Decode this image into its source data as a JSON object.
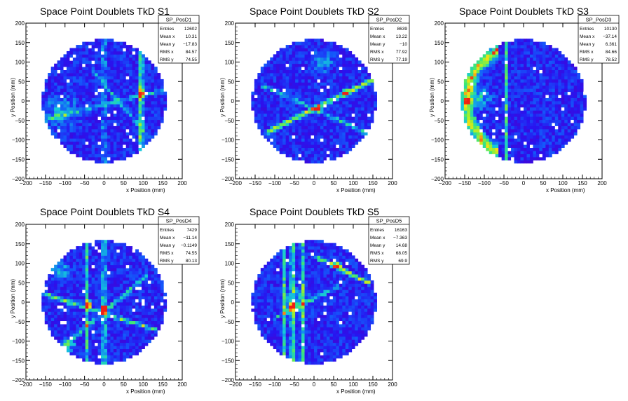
{
  "chart_data": [
    {
      "type": "heatmap",
      "title": "Space Point Doublets TkD S1",
      "xlabel": "x Position (mm)",
      "ylabel": "y Position (mm)",
      "xlim": [
        -200,
        200
      ],
      "ylim": [
        -200,
        200
      ],
      "ticks": [
        "−200",
        "−150",
        "−100",
        "−50",
        "0",
        "50",
        "100",
        "150",
        "200"
      ],
      "grid": false,
      "stats": {
        "name": "SP_PosD1",
        "rows": [
          [
            "Entries",
            "12602"
          ],
          [
            "Mean x",
            "10.31"
          ],
          [
            "Mean y",
            "−17.83"
          ],
          [
            "RMS x",
            "84.57"
          ],
          [
            "RMS y",
            "74.55"
          ]
        ]
      },
      "features": [
        {
          "kind": "vline",
          "x": 95,
          "intensity": 0.8
        },
        {
          "kind": "vline",
          "x": 0,
          "intensity": 0.3
        },
        {
          "kind": "line",
          "x1": -160,
          "y1": -50,
          "x2": 160,
          "y2": 30,
          "intensity": 0.3
        },
        {
          "kind": "line",
          "x1": -30,
          "y1": 80,
          "x2": 120,
          "y2": -100,
          "intensity": 0.25
        },
        {
          "kind": "blob",
          "x": -110,
          "y": -30,
          "r": 60,
          "intensity": 0.3
        },
        {
          "kind": "hotspot",
          "x": 95,
          "y": 20,
          "intensity": 1.0
        }
      ]
    },
    {
      "type": "heatmap",
      "title": "Space Point Doublets TkD S2",
      "xlabel": "x Position (mm)",
      "ylabel": "y Position (mm)",
      "xlim": [
        -200,
        200
      ],
      "ylim": [
        -200,
        200
      ],
      "ticks": [
        "−200",
        "−150",
        "−100",
        "−50",
        "0",
        "50",
        "100",
        "150",
        "200"
      ],
      "grid": false,
      "stats": {
        "name": "SP_PosD2",
        "rows": [
          [
            "Entries",
            "8639"
          ],
          [
            "Mean x",
            "13.22"
          ],
          [
            "Mean y",
            "−10"
          ],
          [
            "RMS x",
            "77.92"
          ],
          [
            "RMS y",
            "77.19"
          ]
        ]
      },
      "features": [
        {
          "kind": "line",
          "x1": -120,
          "y1": -80,
          "x2": 150,
          "y2": 55,
          "intensity": 0.7
        },
        {
          "kind": "line",
          "x1": -130,
          "y1": 40,
          "x2": 130,
          "y2": -80,
          "intensity": 0.35
        },
        {
          "kind": "blob",
          "x": 20,
          "y": 100,
          "r": 40,
          "intensity": 0.25
        },
        {
          "kind": "hotspot",
          "x": 10,
          "y": -20,
          "intensity": 0.95
        },
        {
          "kind": "hotspot",
          "x": 80,
          "y": 20,
          "intensity": 0.9
        }
      ]
    },
    {
      "type": "heatmap",
      "title": "Space Point Doublets TkD S3",
      "xlabel": "x Position (mm)",
      "ylabel": "y Position (mm)",
      "xlim": [
        -200,
        200
      ],
      "ylim": [
        -200,
        200
      ],
      "ticks": [
        "−200",
        "−150",
        "−100",
        "−50",
        "0",
        "50",
        "100",
        "150",
        "200"
      ],
      "grid": false,
      "stats": {
        "name": "SP_PosD3",
        "rows": [
          [
            "Entries",
            "10130"
          ],
          [
            "Mean x",
            "−37.14"
          ],
          [
            "Mean y",
            "6.361"
          ],
          [
            "RMS x",
            "84.66"
          ],
          [
            "RMS y",
            "78.52"
          ]
        ]
      },
      "features": [
        {
          "kind": "arc",
          "cx": 0,
          "cy": 0,
          "r": 145,
          "side": "left",
          "intensity": 0.75
        },
        {
          "kind": "vline",
          "x": -45,
          "intensity": 0.45
        },
        {
          "kind": "blob",
          "x": -110,
          "y": 10,
          "r": 40,
          "intensity": 0.35
        },
        {
          "kind": "hotspot",
          "x": -140,
          "y": 0,
          "intensity": 0.85
        }
      ]
    },
    {
      "type": "heatmap",
      "title": "Space Point Doublets TkD S4",
      "xlabel": "x Position (mm)",
      "ylabel": "y Position (mm)",
      "xlim": [
        -200,
        200
      ],
      "ylim": [
        -200,
        200
      ],
      "ticks": [
        "−200",
        "−150",
        "−100",
        "−50",
        "0",
        "50",
        "100",
        "150",
        "200"
      ],
      "grid": false,
      "stats": {
        "name": "SP_PosD4",
        "rows": [
          [
            "Entries",
            "7429"
          ],
          [
            "Mean x",
            "−11.14"
          ],
          [
            "Mean y",
            "−0.1149"
          ],
          [
            "RMS x",
            "74.55"
          ],
          [
            "RMS y",
            "80.13"
          ]
        ]
      },
      "features": [
        {
          "kind": "vline",
          "x": 0,
          "intensity": 0.55
        },
        {
          "kind": "vline",
          "x": -45,
          "intensity": 0.45
        },
        {
          "kind": "line",
          "x1": -150,
          "y1": 20,
          "x2": 130,
          "y2": -70,
          "intensity": 0.5
        },
        {
          "kind": "line",
          "x1": -100,
          "y1": -110,
          "x2": 110,
          "y2": 70,
          "intensity": 0.45
        },
        {
          "kind": "blob",
          "x": -110,
          "y": 80,
          "r": 35,
          "intensity": 0.3
        },
        {
          "kind": "blob",
          "x": -90,
          "y": -110,
          "r": 25,
          "intensity": 0.35
        },
        {
          "kind": "hotspot",
          "x": 0,
          "y": -15,
          "intensity": 1.0
        },
        {
          "kind": "hotspot",
          "x": -40,
          "y": -5,
          "intensity": 0.9
        }
      ]
    },
    {
      "type": "heatmap",
      "title": "Space Point Doublets TkD S5",
      "xlabel": "x Position (mm)",
      "ylabel": "y Position (mm)",
      "xlim": [
        -200,
        200
      ],
      "ylim": [
        -200,
        200
      ],
      "ticks": [
        "−200",
        "−150",
        "−100",
        "−50",
        "0",
        "50",
        "100",
        "150",
        "200"
      ],
      "grid": false,
      "stats": {
        "name": "SP_PosD5",
        "rows": [
          [
            "Entries",
            "16163"
          ],
          [
            "Mean x",
            "−7.363"
          ],
          [
            "Mean y",
            "14.68"
          ],
          [
            "RMS x",
            "68.05"
          ],
          [
            "RMS y",
            "69.9"
          ]
        ]
      },
      "features": [
        {
          "kind": "vline",
          "x": -55,
          "intensity": 0.65
        },
        {
          "kind": "vline",
          "x": -30,
          "intensity": 0.55
        },
        {
          "kind": "vline",
          "x": -75,
          "intensity": 0.4
        },
        {
          "kind": "line",
          "x1": 10,
          "y1": 115,
          "x2": 140,
          "y2": 50,
          "intensity": 0.75
        },
        {
          "kind": "line",
          "x1": -100,
          "y1": -40,
          "x2": 60,
          "y2": 40,
          "intensity": 0.35
        },
        {
          "kind": "blob",
          "x": -50,
          "y": 0,
          "r": 55,
          "intensity": 0.3
        },
        {
          "kind": "hotspot",
          "x": 60,
          "y": 95,
          "intensity": 0.95
        },
        {
          "kind": "hotspot",
          "x": -55,
          "y": -10,
          "intensity": 0.85
        }
      ]
    }
  ]
}
